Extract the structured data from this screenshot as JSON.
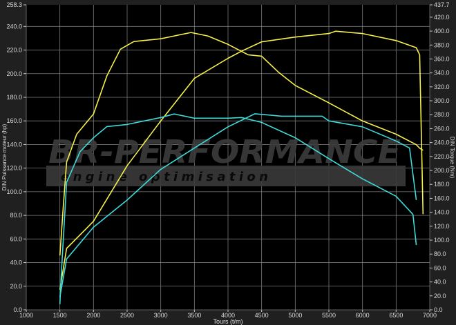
{
  "chart_data": {
    "type": "line",
    "xlabel": "Tours (t/m)",
    "ylabel": "DIN Puissance moteur (hp)",
    "y2label": "DIN Torque (Nm)",
    "xlim": [
      1000,
      7000
    ],
    "ylim": [
      0,
      258.3
    ],
    "y2lim": [
      0,
      437.7
    ],
    "xticks": [
      "1000",
      "1500",
      "2000",
      "2500",
      "3000",
      "3500",
      "4000",
      "4500",
      "5000",
      "5500",
      "6000",
      "6500",
      "7000"
    ],
    "yticks": [
      "0.0",
      "20.0",
      "40.0",
      "60.0",
      "80.0",
      "100.0",
      "120.0",
      "140.0",
      "160.0",
      "180.0",
      "200.0",
      "220.0",
      "240.0",
      "258.3"
    ],
    "y2ticks": [
      "0.0",
      "20.0",
      "40.0",
      "60.0",
      "80.0",
      "100.0",
      "120.0",
      "140.0",
      "160.0",
      "180.0",
      "200.0",
      "220.0",
      "240.0",
      "260.0",
      "280.0",
      "300.0",
      "320.0",
      "340.0",
      "360.0",
      "380.0",
      "400.0",
      "420.0",
      "437.7"
    ],
    "grid": true,
    "background": "#000000",
    "colors": {
      "tuned": "#f5f04a",
      "stock": "#3fd9d9",
      "grid": "#7a7a7a"
    },
    "watermark": {
      "brand": "BR-Performance",
      "tagline": "engine optimisation"
    },
    "series": [
      {
        "axis": "y2",
        "color": "#f5f04a",
        "x": [
          1500,
          1550,
          1600,
          1750,
          2000,
          2200,
          2400,
          2600,
          3000,
          3200,
          3450,
          3700,
          4000,
          4300,
          4500,
          4750,
          5000,
          5500,
          6000,
          6500,
          6800,
          6850,
          6900
        ],
        "values": [
          78,
          147,
          212,
          252,
          281,
          336,
          374,
          385,
          389,
          393,
          398,
          393,
          381,
          366,
          364,
          341,
          322,
          297,
          271,
          252,
          237,
          232,
          229
        ]
      },
      {
        "axis": "y",
        "color": "#f5f04a",
        "x": [
          1500,
          1600,
          2000,
          2500,
          3000,
          3500,
          4000,
          4200,
          4500,
          5000,
          5500,
          5600,
          6000,
          6500,
          6800,
          6850,
          6900
        ],
        "values": [
          17,
          52,
          75,
          122,
          160,
          196,
          213,
          219,
          227,
          231,
          234,
          236,
          234,
          228,
          222,
          216,
          81
        ]
      },
      {
        "axis": "y2",
        "color": "#3fd9d9",
        "x": [
          1500,
          1520,
          1600,
          1800,
          2000,
          2200,
          2500,
          3000,
          3200,
          3500,
          4000,
          4200,
          4500,
          5000,
          5500,
          6000,
          6500,
          6750,
          6800
        ],
        "values": [
          8,
          49,
          183,
          227,
          247,
          263,
          266,
          276,
          281,
          275,
          275,
          276,
          269,
          247,
          217,
          188,
          163,
          137,
          93
        ]
      },
      {
        "axis": "y",
        "color": "#3fd9d9",
        "x": [
          1500,
          1600,
          2000,
          2500,
          3000,
          3500,
          4000,
          4400,
          4800,
          5000,
          5400,
          5500,
          6000,
          6500,
          6700,
          6800
        ],
        "values": [
          11,
          43,
          70,
          93,
          119,
          137,
          155,
          166,
          164,
          164,
          164,
          160,
          155,
          143,
          137,
          93
        ]
      }
    ]
  }
}
